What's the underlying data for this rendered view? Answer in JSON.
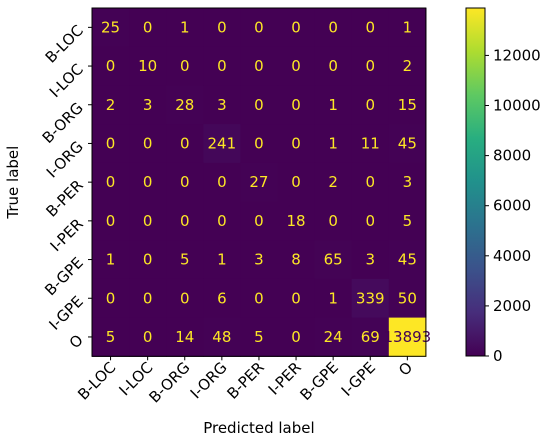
{
  "chart_data": {
    "type": "heatmap",
    "title": "",
    "xlabel": "Predicted label",
    "ylabel": "True label",
    "x_categories": [
      "B-LOC",
      "I-LOC",
      "B-ORG",
      "I-ORG",
      "B-PER",
      "I-PER",
      "B-GPE",
      "I-GPE",
      "O"
    ],
    "y_categories": [
      "B-LOC",
      "I-LOC",
      "B-ORG",
      "I-ORG",
      "B-PER",
      "I-PER",
      "B-GPE",
      "I-GPE",
      "O"
    ],
    "values": [
      [
        25,
        0,
        1,
        0,
        0,
        0,
        0,
        0,
        1
      ],
      [
        0,
        10,
        0,
        0,
        0,
        0,
        0,
        0,
        2
      ],
      [
        2,
        3,
        28,
        3,
        0,
        0,
        1,
        0,
        15
      ],
      [
        0,
        0,
        0,
        241,
        0,
        0,
        1,
        11,
        45
      ],
      [
        0,
        0,
        0,
        0,
        27,
        0,
        2,
        0,
        3
      ],
      [
        0,
        0,
        0,
        0,
        0,
        18,
        0,
        0,
        5
      ],
      [
        1,
        0,
        5,
        1,
        3,
        8,
        65,
        3,
        45
      ],
      [
        0,
        0,
        0,
        6,
        0,
        0,
        1,
        339,
        50
      ],
      [
        5,
        0,
        14,
        48,
        5,
        0,
        24,
        69,
        13893
      ]
    ],
    "colormap": "viridis",
    "colorbar": {
      "min": 0,
      "max": 13893,
      "ticks": [
        0,
        2000,
        4000,
        6000,
        8000,
        10000,
        12000
      ]
    },
    "colors": {
      "low": "#440154",
      "high": "#fde725",
      "text_on_dark": "#fde725",
      "text_on_light": "#440154"
    }
  }
}
